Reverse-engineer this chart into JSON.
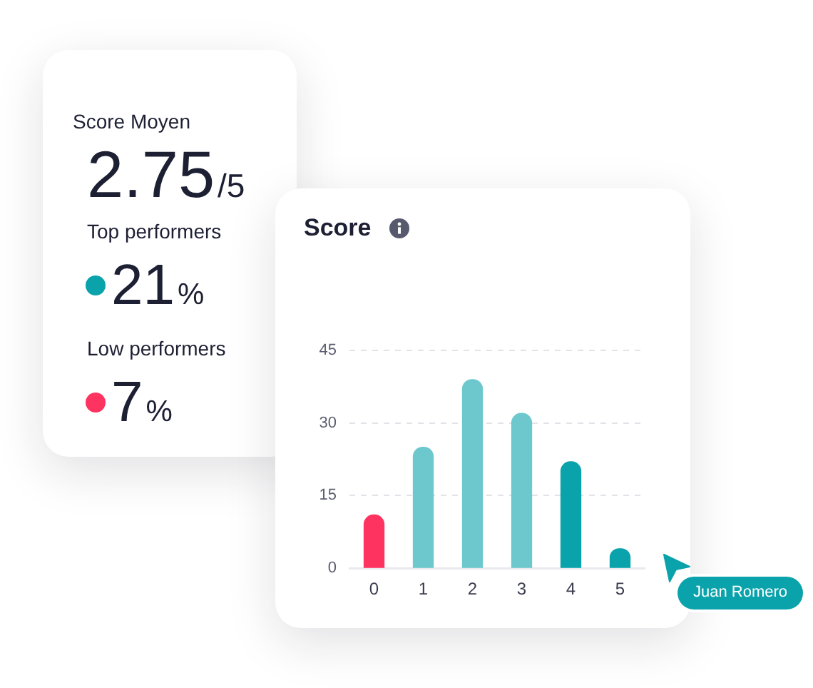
{
  "chart_data": [
    {
      "type": "other",
      "title": "Score Moyen",
      "annotations": [
        "2.75/5",
        "Top performers",
        "21%",
        "Low performers",
        "7%"
      ]
    },
    {
      "type": "bar",
      "title": "Score",
      "categories": [
        "0",
        "1",
        "2",
        "3",
        "4",
        "5"
      ],
      "values": [
        11,
        25,
        39,
        32,
        22,
        4
      ],
      "colors": [
        "#fe3360",
        "#6cc8cd",
        "#6cc8cd",
        "#6cc8cd",
        "#0aa3ab",
        "#0aa3ab"
      ],
      "ylim": [
        0,
        45
      ],
      "yticks": [
        0,
        15,
        30,
        45
      ],
      "grid": "y",
      "annotations": [
        "Juan Romero"
      ]
    }
  ]
}
